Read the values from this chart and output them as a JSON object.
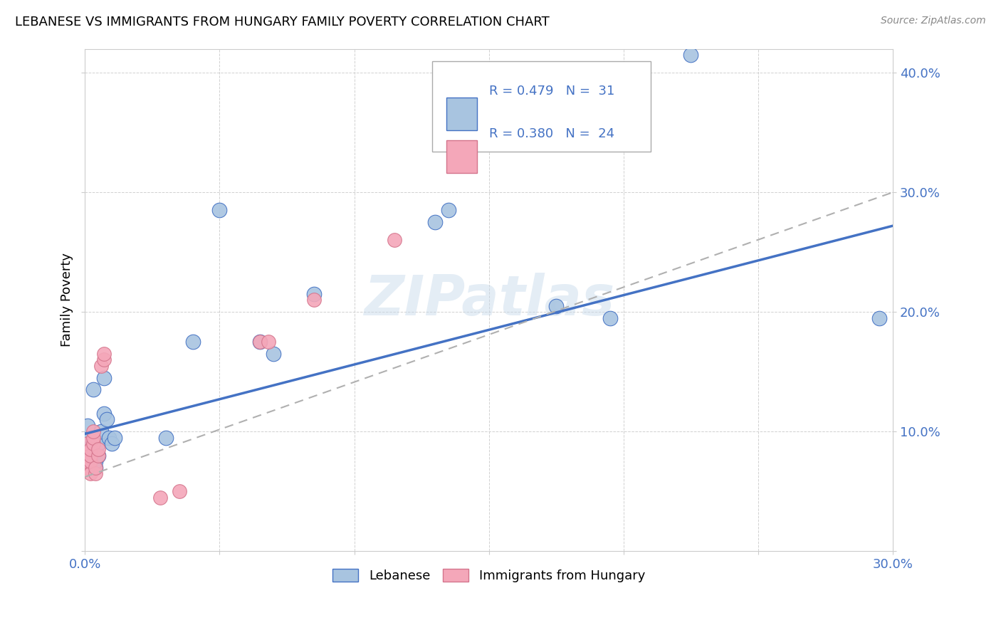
{
  "title": "LEBANESE VS IMMIGRANTS FROM HUNGARY FAMILY POVERTY CORRELATION CHART",
  "source": "Source: ZipAtlas.com",
  "ylabel": "Family Poverty",
  "legend_label1": "Lebanese",
  "legend_label2": "Immigrants from Hungary",
  "legend_R1": "R = 0.479",
  "legend_N1": "N =  31",
  "legend_R2": "R = 0.380",
  "legend_N2": "N =  24",
  "color_blue": "#a8c4e0",
  "color_pink": "#f4a7b9",
  "color_blue_line": "#4472c4",
  "color_pink_line": "#d4748c",
  "color_blue_text": "#4472c4",
  "color_gray_dash": "#b0b0b0",
  "watermark_text": "ZIPatlas",
  "blue_points": [
    [
      0.001,
      0.105
    ],
    [
      0.001,
      0.09
    ],
    [
      0.002,
      0.075
    ],
    [
      0.002,
      0.085
    ],
    [
      0.002,
      0.095
    ],
    [
      0.003,
      0.08
    ],
    [
      0.003,
      0.09
    ],
    [
      0.003,
      0.135
    ],
    [
      0.004,
      0.07
    ],
    [
      0.004,
      0.075
    ],
    [
      0.005,
      0.08
    ],
    [
      0.005,
      0.09
    ],
    [
      0.006,
      0.1
    ],
    [
      0.007,
      0.115
    ],
    [
      0.007,
      0.145
    ],
    [
      0.008,
      0.11
    ],
    [
      0.009,
      0.095
    ],
    [
      0.01,
      0.09
    ],
    [
      0.011,
      0.095
    ],
    [
      0.03,
      0.095
    ],
    [
      0.04,
      0.175
    ],
    [
      0.05,
      0.285
    ],
    [
      0.065,
      0.175
    ],
    [
      0.07,
      0.165
    ],
    [
      0.085,
      0.215
    ],
    [
      0.13,
      0.275
    ],
    [
      0.135,
      0.285
    ],
    [
      0.175,
      0.205
    ],
    [
      0.195,
      0.195
    ],
    [
      0.225,
      0.415
    ],
    [
      0.295,
      0.195
    ]
  ],
  "pink_points": [
    [
      0.001,
      0.07
    ],
    [
      0.001,
      0.075
    ],
    [
      0.001,
      0.08
    ],
    [
      0.001,
      0.09
    ],
    [
      0.002,
      0.065
    ],
    [
      0.002,
      0.075
    ],
    [
      0.002,
      0.08
    ],
    [
      0.002,
      0.085
    ],
    [
      0.003,
      0.09
    ],
    [
      0.003,
      0.095
    ],
    [
      0.003,
      0.1
    ],
    [
      0.004,
      0.065
    ],
    [
      0.004,
      0.07
    ],
    [
      0.005,
      0.08
    ],
    [
      0.005,
      0.085
    ],
    [
      0.006,
      0.155
    ],
    [
      0.007,
      0.16
    ],
    [
      0.007,
      0.165
    ],
    [
      0.028,
      0.045
    ],
    [
      0.035,
      0.05
    ],
    [
      0.065,
      0.175
    ],
    [
      0.068,
      0.175
    ],
    [
      0.085,
      0.21
    ],
    [
      0.115,
      0.26
    ]
  ],
  "xlim": [
    0.0,
    0.3
  ],
  "ylim": [
    0.0,
    0.42
  ],
  "xticks": [
    0.0,
    0.05,
    0.1,
    0.15,
    0.2,
    0.25,
    0.3
  ],
  "yticks": [
    0.0,
    0.1,
    0.2,
    0.3,
    0.4
  ],
  "xtick_labels_show": [
    true,
    false,
    false,
    false,
    false,
    false,
    true
  ],
  "ytick_labels_show": [
    false,
    true,
    true,
    true,
    true
  ],
  "blue_trend_x": [
    0.0,
    0.3
  ],
  "blue_trend_y": [
    0.098,
    0.272
  ],
  "pink_trend_x": [
    0.0,
    0.3
  ],
  "pink_trend_y": [
    0.062,
    0.3
  ]
}
